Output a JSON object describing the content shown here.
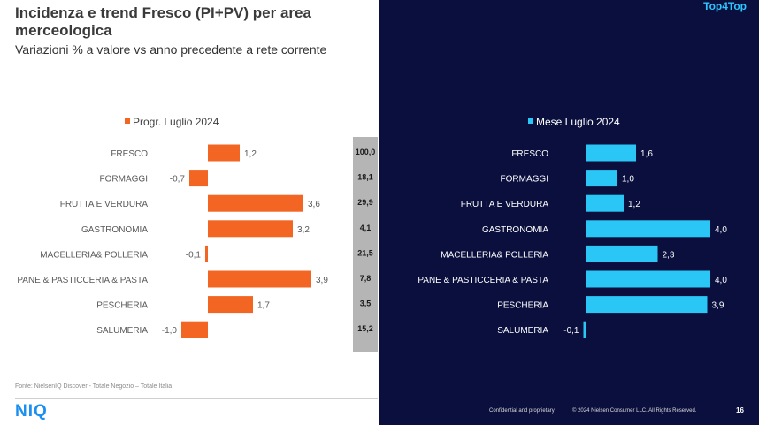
{
  "header": {
    "title": "Incidenza e trend Fresco (PI+PV) per area merceologica",
    "subtitle": "Variazioni % a valore vs anno precedente a rete corrente",
    "brand_tag": "Top4Top"
  },
  "footer": {
    "source": "Fonte: NielsenIQ Discover - Totale Negozio – Totale Italia",
    "logo": "NIQ",
    "confidential": "Confidential and proprietary",
    "copyright": "© 2024 Nielsen Consumer LLC. All Rights Reserved.",
    "page": "16"
  },
  "colors": {
    "left_bar": "#f26522",
    "right_bar": "#29c6f6",
    "panel_bg": "#0a0f3d"
  },
  "chart_data": [
    {
      "type": "bar",
      "orientation": "horizontal",
      "legend": "Progr. Luglio 2024",
      "categories": [
        "FRESCO",
        "FORMAGGI",
        "FRUTTA E VERDURA",
        "GASTRONOMIA",
        "MACELLERIA& POLLERIA",
        "PANE & PASTICCERIA & PASTA",
        "PESCHERIA",
        "SALUMERIA"
      ],
      "values": [
        1.2,
        -0.7,
        3.6,
        3.2,
        -0.1,
        3.9,
        1.7,
        -1.0
      ],
      "labels": [
        "1,2",
        "-0,7",
        "3,6",
        "3,2",
        "-0,1",
        "3,9",
        "1,7",
        "-1,0"
      ],
      "weights": [
        "100,0",
        "18,1",
        "29,9",
        "4,1",
        "21,5",
        "7,8",
        "3,5",
        "15,2"
      ]
    },
    {
      "type": "bar",
      "orientation": "horizontal",
      "legend": "Mese Luglio 2024",
      "categories": [
        "FRESCO",
        "FORMAGGI",
        "FRUTTA E VERDURA",
        "GASTRONOMIA",
        "MACELLERIA& POLLERIA",
        "PANE & PASTICCERIA & PASTA",
        "PESCHERIA",
        "SALUMERIA"
      ],
      "values": [
        1.6,
        1.0,
        1.2,
        4.0,
        2.3,
        4.0,
        3.9,
        -0.1
      ],
      "labels": [
        "1,6",
        "1,0",
        "1,2",
        "4,0",
        "2,3",
        "4,0",
        "3,9",
        "-0,1"
      ]
    }
  ]
}
